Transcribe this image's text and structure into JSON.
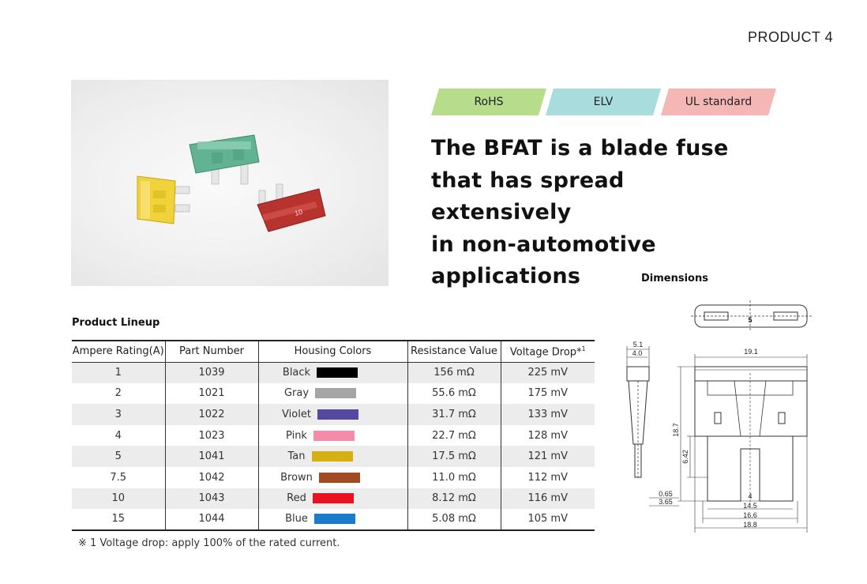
{
  "page_label": "PRODUCT 4",
  "badges": [
    {
      "label": "RoHS",
      "color": "#b7dc8c"
    },
    {
      "label": "ELV",
      "color": "#a9dcdc"
    },
    {
      "label": "UL standard",
      "color": "#f4b7b6"
    }
  ],
  "headline": [
    "The BFAT is a blade fuse",
    "that has spread extensively",
    "in non-automotive",
    "applications"
  ],
  "photo": {
    "fuses": [
      {
        "name": "green-fuse",
        "color": "#5aa98a"
      },
      {
        "name": "yellow-fuse",
        "color": "#e8c520"
      },
      {
        "name": "red-fuse",
        "color": "#b8332e",
        "label": "10"
      }
    ]
  },
  "dimensions": {
    "title": "Dimensions",
    "fuse_label": "5",
    "labels": [
      "5.1",
      "4.0",
      "19.1",
      "18.7",
      "6.42",
      "0.65",
      "3.65",
      "4",
      "14.5",
      "16.6",
      "18.8"
    ]
  },
  "lineup": {
    "title": "Product Lineup",
    "headers": [
      "Ampere Rating(A)",
      "Part Number",
      "Housing Colors",
      "Resistance Value",
      "Voltage Drop*",
      "1"
    ],
    "rows": [
      {
        "amp": "1",
        "part": "1039",
        "color_name": "Black",
        "color": "#000000",
        "resistance": "156 mΩ",
        "voltage": "225 mV"
      },
      {
        "amp": "2",
        "part": "1021",
        "color_name": "Gray",
        "color": "#a5a5a5",
        "resistance": "55.6 mΩ",
        "voltage": "175 mV"
      },
      {
        "amp": "3",
        "part": "1022",
        "color_name": "Violet",
        "color": "#5548a0",
        "resistance": "31.7 mΩ",
        "voltage": "133 mV"
      },
      {
        "amp": "4",
        "part": "1023",
        "color_name": "Pink",
        "color": "#f28ca8",
        "resistance": "22.7 mΩ",
        "voltage": "128 mV"
      },
      {
        "amp": "5",
        "part": "1041",
        "color_name": "Tan",
        "color": "#d4b012",
        "resistance": "17.5 mΩ",
        "voltage": "121 mV"
      },
      {
        "amp": "7.5",
        "part": "1042",
        "color_name": "Brown",
        "color": "#a24a22",
        "resistance": "11.0 mΩ",
        "voltage": "112 mV"
      },
      {
        "amp": "10",
        "part": "1043",
        "color_name": "Red",
        "color": "#e8131f",
        "resistance": "8.12 mΩ",
        "voltage": "116 mV"
      },
      {
        "amp": "15",
        "part": "1044",
        "color_name": "Blue",
        "color": "#1a7ccc",
        "resistance": "5.08 mΩ",
        "voltage": "105 mV"
      }
    ]
  },
  "footnote": "※ 1 Voltage drop: apply 100% of the rated current."
}
